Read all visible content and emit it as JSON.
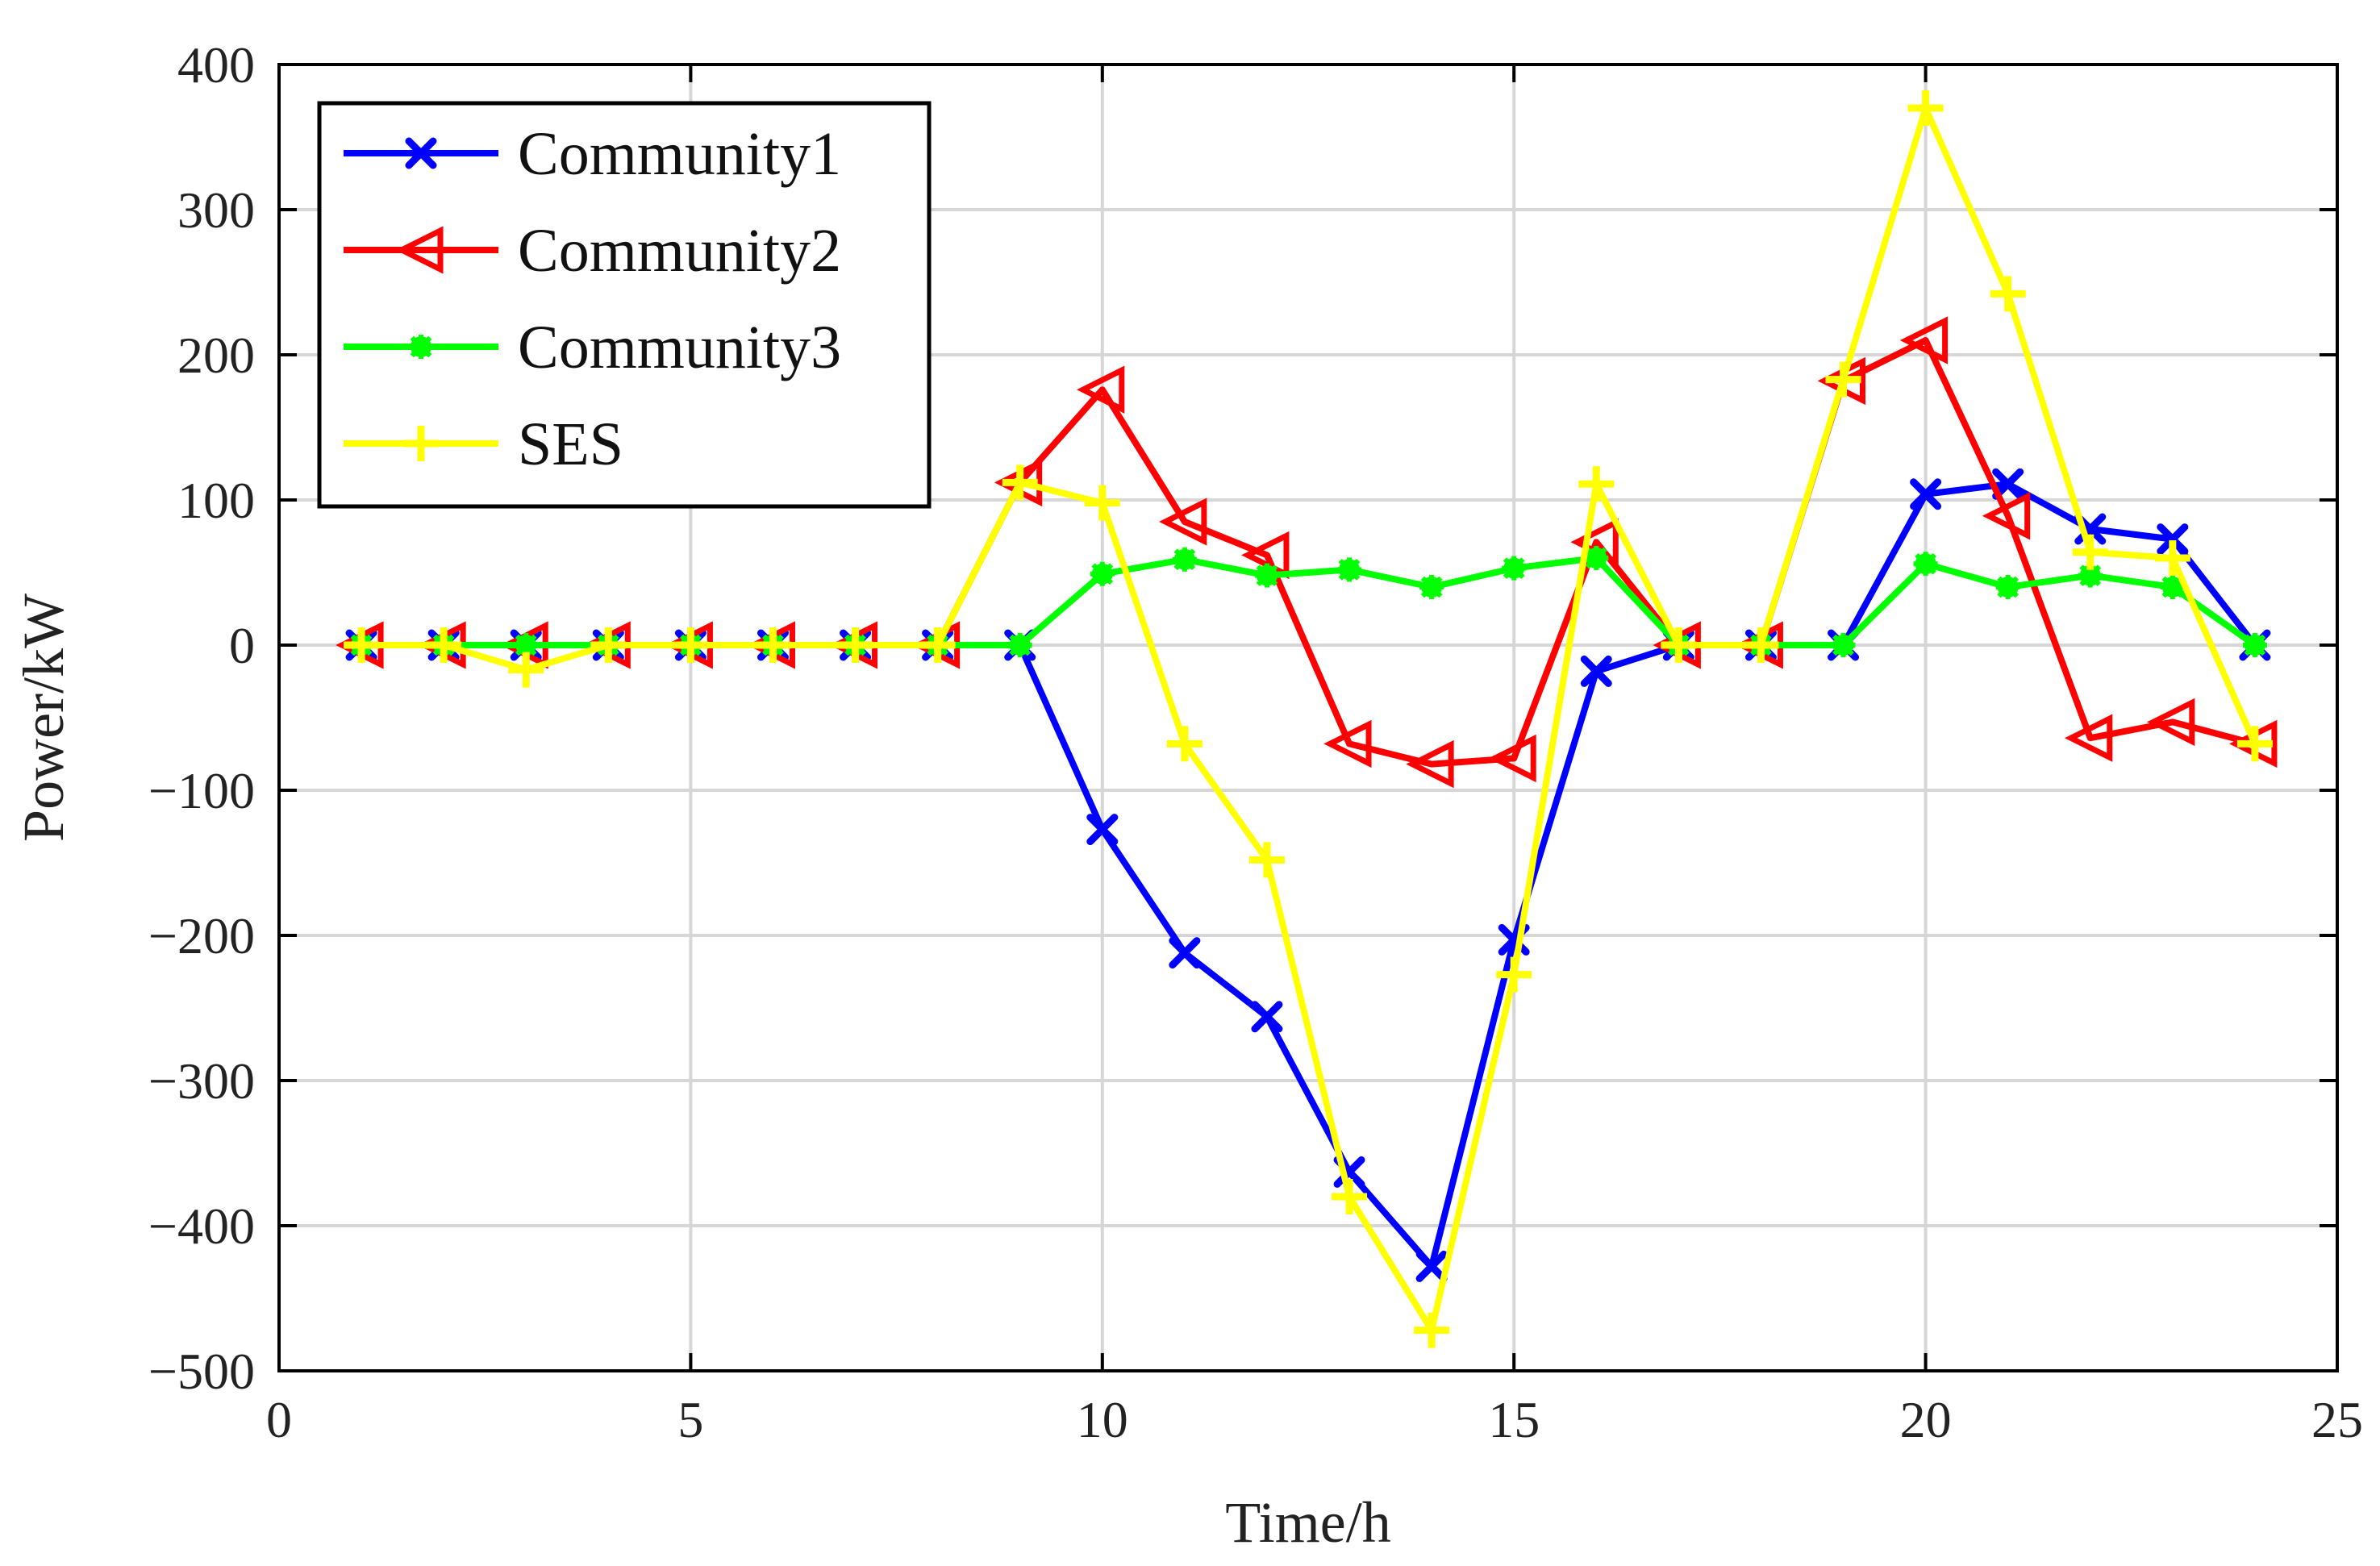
{
  "chart_data": {
    "type": "line",
    "title": "",
    "xlabel": "Time/h",
    "ylabel": "Power/kW",
    "xlim": [
      0,
      25
    ],
    "ylim": [
      -500,
      400
    ],
    "xticks": [
      0,
      5,
      10,
      15,
      20,
      25
    ],
    "yticks": [
      -500,
      -400,
      -300,
      -200,
      -100,
      0,
      100,
      200,
      300,
      400
    ],
    "xtick_labels": [
      "0",
      "5",
      "10",
      "15",
      "20",
      "25"
    ],
    "ytick_labels": [
      "−500",
      "−400",
      "−300",
      "−200",
      "−100",
      "0",
      "100",
      "200",
      "300",
      "400"
    ],
    "grid": true,
    "legend_position": "top-left",
    "x": [
      1,
      2,
      3,
      4,
      5,
      6,
      7,
      8,
      9,
      10,
      11,
      12,
      13,
      14,
      15,
      16,
      17,
      18,
      19,
      20,
      21,
      22,
      23,
      24
    ],
    "series": [
      {
        "name": "Community1",
        "color": "#0000ff",
        "marker": "x",
        "values": [
          0,
          0,
          0,
          0,
          0,
          0,
          0,
          0,
          0,
          -127,
          -212,
          -256,
          -363,
          -428,
          -203,
          -18,
          0,
          0,
          0,
          104,
          111,
          80,
          73,
          0
        ]
      },
      {
        "name": "Community2",
        "color": "#ff0000",
        "marker": "triangle-left",
        "values": [
          0,
          0,
          0,
          0,
          0,
          0,
          0,
          0,
          112,
          176,
          85,
          62,
          -68,
          -82,
          -78,
          71,
          0,
          0,
          182,
          210,
          89,
          -64,
          -53,
          -68
        ]
      },
      {
        "name": "Community3",
        "color": "#00ff00",
        "marker": "asterisk",
        "values": [
          0,
          0,
          0,
          0,
          0,
          0,
          0,
          0,
          0,
          49,
          59,
          48,
          52,
          40,
          53,
          60,
          0,
          0,
          0,
          56,
          40,
          48,
          40,
          0
        ]
      },
      {
        "name": "SES",
        "color": "#ffff00",
        "marker": "plus",
        "values": [
          0,
          0,
          -17,
          0,
          0,
          0,
          0,
          0,
          112,
          98,
          -68,
          -148,
          -380,
          -472,
          -227,
          111,
          0,
          0,
          183,
          370,
          242,
          64,
          60,
          -68
        ]
      }
    ]
  }
}
